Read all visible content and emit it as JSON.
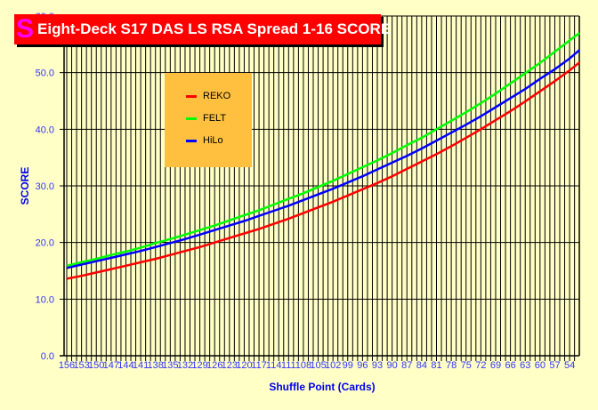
{
  "chart_data": {
    "type": "line",
    "title": "Eight-Deck S17 DAS LS RSA Spread 1-16 SCORE",
    "xlabel": "Shuffle Point (Cards)",
    "ylabel": "SCORE",
    "ylim": [
      0,
      60
    ],
    "yticks": [
      "0.0",
      "10.0",
      "20.0",
      "30.0",
      "40.0",
      "50.0",
      "60.0"
    ],
    "x": [
      156,
      153,
      150,
      147,
      144,
      141,
      138,
      135,
      132,
      129,
      126,
      123,
      120,
      117,
      114,
      111,
      108,
      105,
      102,
      99,
      96,
      93,
      90,
      87,
      84,
      81,
      78,
      75,
      72,
      69,
      66,
      63,
      60,
      57,
      54,
      52
    ],
    "xtick_labels": [
      "156",
      "153",
      "150",
      "147",
      "144",
      "141",
      "138",
      "135",
      "132",
      "129",
      "126",
      "123",
      "120",
      "117",
      "114",
      "111",
      "108",
      "105",
      "102",
      "99",
      "96",
      "93",
      "90",
      "87",
      "84",
      "81",
      "78",
      "75",
      "72",
      "69",
      "66",
      "63",
      "60",
      "57",
      "54"
    ],
    "grid": true,
    "legend_position": "top-left",
    "series": [
      {
        "name": "REKO",
        "color": "#FF0000",
        "values": [
          13.6,
          14.1,
          14.7,
          15.3,
          15.9,
          16.5,
          17.1,
          17.8,
          18.5,
          19.2,
          20.0,
          20.8,
          21.6,
          22.4,
          23.3,
          24.2,
          25.2,
          26.2,
          27.2,
          28.3,
          29.4,
          30.5,
          31.7,
          33.0,
          34.3,
          35.6,
          37.0,
          38.5,
          40.0,
          41.6,
          43.2,
          44.9,
          46.7,
          48.5,
          50.4,
          51.8
        ]
      },
      {
        "name": "FELT",
        "color": "#00FF00",
        "values": [
          15.9,
          16.5,
          17.1,
          17.8,
          18.4,
          19.1,
          19.9,
          20.6,
          21.4,
          22.2,
          23.0,
          23.9,
          24.8,
          25.7,
          26.7,
          27.7,
          28.7,
          29.8,
          30.9,
          32.1,
          33.3,
          34.5,
          35.8,
          37.2,
          38.5,
          40.0,
          41.5,
          43.0,
          44.6,
          46.3,
          48.1,
          49.9,
          51.7,
          53.7,
          55.7,
          57.0
        ]
      },
      {
        "name": "HiLo",
        "color": "#0000FF",
        "values": [
          15.5,
          16.1,
          16.7,
          17.3,
          17.9,
          18.5,
          19.2,
          19.9,
          20.6,
          21.4,
          22.2,
          23.0,
          23.8,
          24.7,
          25.6,
          26.5,
          27.5,
          28.5,
          29.5,
          30.6,
          31.7,
          32.9,
          34.1,
          35.3,
          36.6,
          38.0,
          39.4,
          40.8,
          42.3,
          43.9,
          45.5,
          47.1,
          48.9,
          50.6,
          52.5,
          54.0
        ]
      }
    ]
  },
  "logo": "S"
}
